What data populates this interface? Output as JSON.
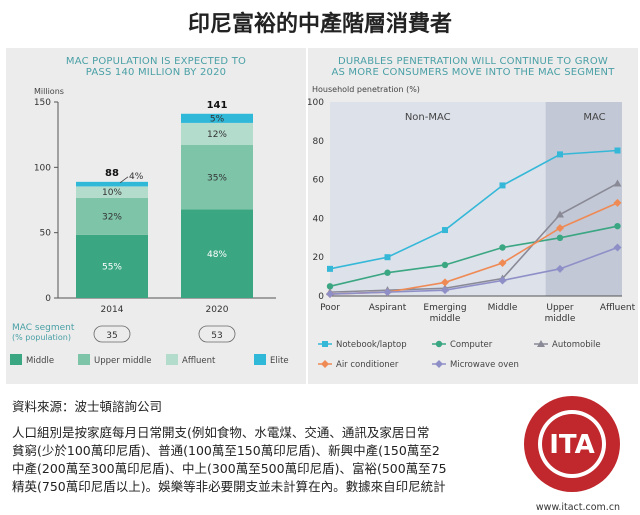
{
  "page_title": "印尼富裕的中產階層消費者",
  "left_chart": {
    "title_line1": "MAC POPULATION IS EXPECTED TO",
    "title_line2": "PASS 140 MILLION BY 2020",
    "ylabel": "Millions",
    "segment_label_line1": "MAC segment",
    "segment_label_line2": "(% population)"
  },
  "right_chart": {
    "title_line1": "DURABLES PENETRATION WILL CONTINUE TO GROW",
    "title_line2": "AS MORE CONSUMERS MOVE INTO THE MAC SEGMENT",
    "ylabel": "Household penetration (%)"
  },
  "colors": {
    "middle": "#3aa682",
    "upper_middle": "#7ec4a9",
    "affluent": "#b4dccd",
    "elite": "#2fb8d8",
    "nonmac_bg": "#dde1ea",
    "mac_bg": "#c2c8d6"
  },
  "chart_data": [
    {
      "type": "bar",
      "stacked": true,
      "title": "MAC POPULATION IS EXPECTED TO PASS 140 MILLION BY 2020",
      "ylabel": "Millions",
      "ylim": [
        0,
        150
      ],
      "yticks": [
        0,
        50,
        100,
        150
      ],
      "categories": [
        "2014",
        "2020"
      ],
      "totals": [
        88,
        141
      ],
      "series": [
        {
          "name": "Middle",
          "values": [
            48.4,
            67.7
          ],
          "labels": [
            "55%",
            "48%"
          ]
        },
        {
          "name": "Upper middle",
          "values": [
            28.2,
            49.4
          ],
          "labels": [
            "32%",
            "35%"
          ]
        },
        {
          "name": "Affluent",
          "values": [
            8.8,
            16.9
          ],
          "labels": [
            "10%",
            "12%"
          ]
        },
        {
          "name": "Elite",
          "values": [
            3.5,
            7.0
          ],
          "labels": [
            "4%",
            "5%"
          ]
        }
      ],
      "mac_segment_pct": [
        "35",
        "53"
      ],
      "legend": [
        "Middle",
        "Upper middle",
        "Affluent",
        "Elite"
      ],
      "legend_position": "bottom",
      "grid": false
    },
    {
      "type": "line",
      "title": "DURABLES PENETRATION WILL CONTINUE TO GROW AS MORE CONSUMERS MOVE INTO THE MAC SEGMENT",
      "ylabel": "Household penetration (%)",
      "ylim": [
        0,
        100
      ],
      "yticks": [
        0,
        20,
        40,
        60,
        80,
        100
      ],
      "categories": [
        "Poor",
        "Aspirant",
        "Emerging\nmiddle",
        "Middle",
        "Upper\nmiddle",
        "Affluent"
      ],
      "regions": [
        {
          "name": "Non-MAC",
          "from": "Poor",
          "to": "Middle"
        },
        {
          "name": "MAC",
          "from": "Middle",
          "to": "Affluent"
        }
      ],
      "series": [
        {
          "name": "Notebook/laptop",
          "values": [
            14,
            20,
            34,
            57,
            73,
            75
          ],
          "color": "#35b8d8",
          "marker": "square"
        },
        {
          "name": "Computer",
          "values": [
            5,
            12,
            16,
            25,
            30,
            36
          ],
          "color": "#3aa682",
          "marker": "circle"
        },
        {
          "name": "Automobile",
          "values": [
            2,
            3,
            4,
            9,
            42,
            58
          ],
          "color": "#8a8a96",
          "marker": "triangle"
        },
        {
          "name": "Air conditioner",
          "values": [
            1,
            2,
            7,
            17,
            35,
            48
          ],
          "color": "#ef8a55",
          "marker": "diamond"
        },
        {
          "name": "Microwave oven",
          "values": [
            1,
            2,
            3,
            8,
            14,
            25
          ],
          "color": "#8f8fc8",
          "marker": "diamond"
        }
      ],
      "legend_position": "bottom",
      "grid": false
    }
  ],
  "source_text": "資料來源：波士頓諮詢公司",
  "paragraph": "人口組別是按家庭每月日常開支(例如食物、水電煤、交通、通訊及家居日常\n貧窮(少於100萬印尼盾)、普通(100萬至150萬印尼盾)、新興中產(150萬至2\n中產(200萬至300萬印尼盾)、中上(300萬至500萬印尼盾)、富裕(500萬至75\n精英(750萬印尼盾以上)。娛樂等非必要開支並未計算在內。數據來自印尼統計",
  "logo": {
    "abbr": "ITA",
    "ring_text": "國際漢語教師協會",
    "ring_text_en": "International Chinese Language Teachers Association",
    "website": "www.itact.com.cn"
  }
}
